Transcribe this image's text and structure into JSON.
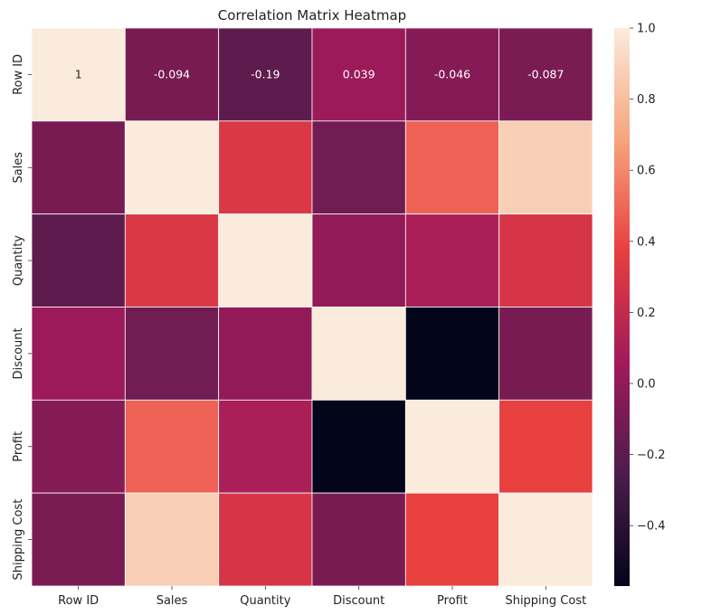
{
  "chart_data": {
    "type": "heatmap",
    "title": "Correlation Matrix Heatmap",
    "xlabel": "",
    "ylabel": "",
    "categories": [
      "Row ID",
      "Sales",
      "Quantity",
      "Discount",
      "Profit",
      "Shipping Cost"
    ],
    "matrix": [
      [
        1.0,
        -0.094,
        -0.19,
        0.039,
        -0.046,
        -0.087
      ],
      [
        -0.094,
        1.0,
        0.31,
        -0.12,
        0.48,
        0.87
      ],
      [
        -0.19,
        0.31,
        1.0,
        0.008,
        0.1,
        0.29
      ],
      [
        0.039,
        -0.12,
        0.008,
        1.0,
        -0.57,
        -0.09
      ],
      [
        -0.046,
        0.48,
        0.1,
        -0.57,
        1.0,
        0.37
      ],
      [
        -0.087,
        0.87,
        0.29,
        -0.09,
        0.37,
        1.0
      ]
    ],
    "annotated_row": 0,
    "annotations": [
      "1",
      "-0.094",
      "-0.19",
      "0.039",
      "-0.046",
      "-0.087"
    ],
    "colorbar": {
      "vmin": -0.57,
      "vmax": 1.0,
      "ticks": [
        -0.4,
        -0.2,
        0.0,
        0.2,
        0.4,
        0.6,
        0.8,
        1.0
      ],
      "tick_labels": [
        "−0.4",
        "−0.2",
        "0.0",
        "0.2",
        "0.4",
        "0.6",
        "0.8",
        "1.0"
      ],
      "colormap": "rocket",
      "color_stops": [
        "#03051a",
        "#4c1d4b",
        "#a11a5b",
        "#e83f3f",
        "#f6a47c",
        "#faebdd"
      ]
    },
    "grid": false
  }
}
